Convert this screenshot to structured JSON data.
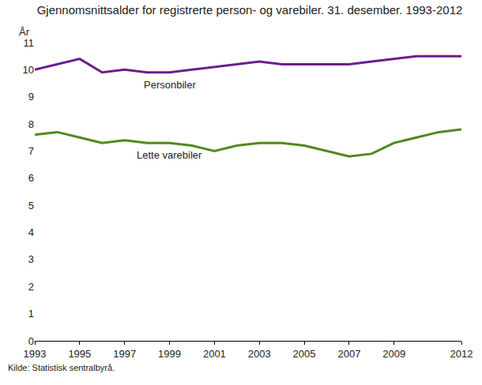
{
  "chart_data": {
    "type": "line",
    "title": "Gjennomsnittsalder for registrerte person- og varebiler. 31. desember. 1993-2012",
    "y_label": "År",
    "source": "Kilde: Statistisk sentralbyrå.",
    "x": [
      1993,
      1994,
      1995,
      1996,
      1997,
      1998,
      1999,
      2000,
      2001,
      2002,
      2003,
      2004,
      2005,
      2006,
      2007,
      2008,
      2009,
      2010,
      2011,
      2012
    ],
    "series": [
      {
        "name": "Personbiler",
        "color": "#6b1d8c",
        "values": [
          10.0,
          10.2,
          10.4,
          9.9,
          10.0,
          9.9,
          9.9,
          10.0,
          10.1,
          10.2,
          10.3,
          10.2,
          10.2,
          10.2,
          10.2,
          10.3,
          10.4,
          10.5,
          10.5,
          10.5
        ]
      },
      {
        "name": "Lette varebiler",
        "color": "#4e8a1c",
        "values": [
          7.6,
          7.7,
          7.5,
          7.3,
          7.4,
          7.3,
          7.3,
          7.2,
          7.0,
          7.2,
          7.3,
          7.3,
          7.2,
          7.0,
          6.8,
          6.9,
          7.3,
          7.5,
          7.7,
          7.8
        ]
      }
    ],
    "xlim": [
      1993,
      2012
    ],
    "xticks": [
      1993,
      1995,
      1997,
      1999,
      2001,
      2003,
      2005,
      2007,
      2009,
      2012
    ],
    "ylim": [
      0,
      11
    ],
    "yticks": [
      0,
      1,
      2,
      3,
      4,
      5,
      6,
      7,
      8,
      9,
      10,
      11
    ],
    "grid": false
  }
}
